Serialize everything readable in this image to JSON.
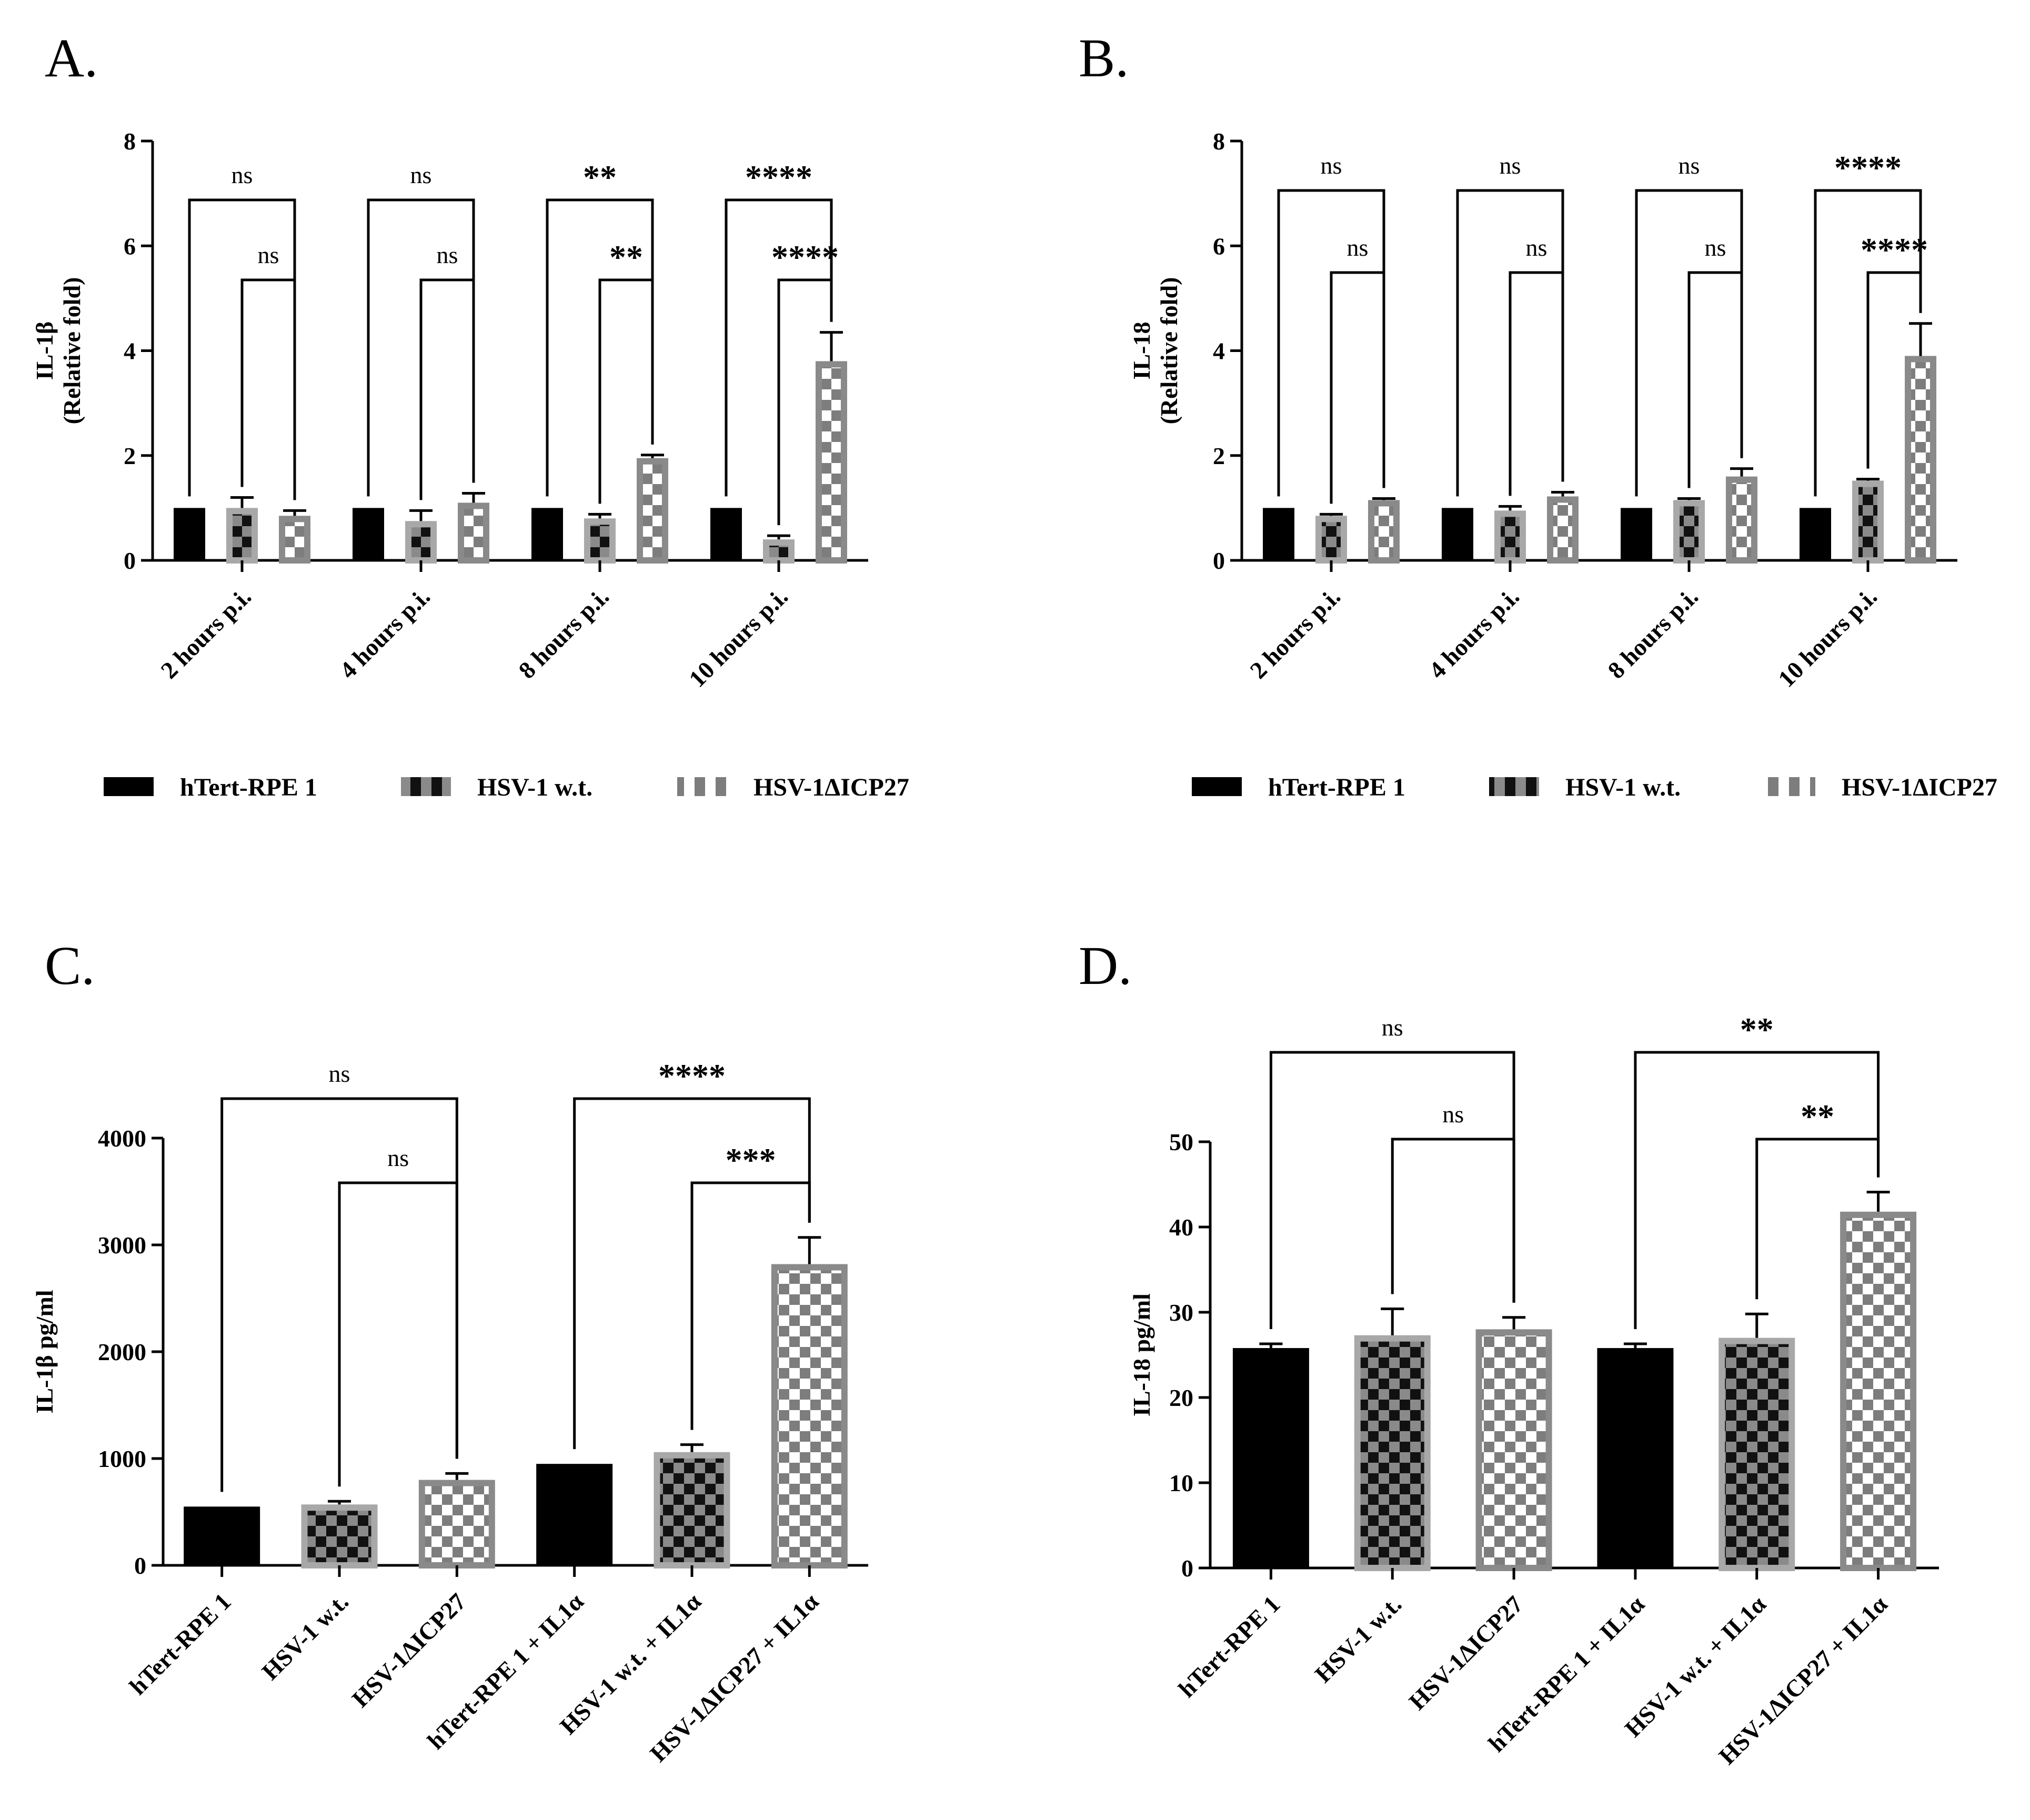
{
  "figure": {
    "panels": [
      {
        "letter": "A."
      },
      {
        "letter": "B."
      },
      {
        "letter": "C."
      },
      {
        "letter": "D."
      }
    ]
  },
  "legend": {
    "items": [
      {
        "label": "hTert-RPE 1",
        "pattern": "solid"
      },
      {
        "label": "HSV-1 w.t.",
        "pattern": "check-dark"
      },
      {
        "label": "HSV-1ΔICP27",
        "pattern": "check-light"
      }
    ]
  },
  "chart_data": [
    {
      "type": "bar",
      "ylabel_line1": "IL-1β",
      "ylabel_line2": "(Relative fold)",
      "ylim": [
        0,
        8
      ],
      "yticks": [
        "0",
        "2",
        "4",
        "6",
        "8"
      ],
      "categories": [
        "2 hours p.i.",
        "4 hours p.i.",
        "8 hours p.i.",
        "10 hours p.i."
      ],
      "series": [
        {
          "name": "hTert-RPE 1",
          "values": [
            1.0,
            1.0,
            1.0,
            1.0
          ],
          "errors": [
            0,
            0,
            0,
            0
          ]
        },
        {
          "name": "HSV-1 w.t.",
          "values": [
            1.0,
            0.75,
            0.8,
            0.4
          ],
          "errors": [
            0.2,
            0.2,
            0.08,
            0.07
          ]
        },
        {
          "name": "HSV-1ΔICP27",
          "values": [
            0.85,
            1.1,
            1.95,
            3.8
          ],
          "errors": [
            0.1,
            0.18,
            0.06,
            0.55
          ]
        }
      ],
      "significance": [
        {
          "outer": "ns",
          "inner": "ns"
        },
        {
          "outer": "ns",
          "inner": "ns"
        },
        {
          "outer": "**",
          "inner": "**"
        },
        {
          "outer": "****",
          "inner": "****"
        }
      ]
    },
    {
      "type": "bar",
      "ylabel_line1": "IL-18",
      "ylabel_line2": "(Relative fold)",
      "ylim": [
        0,
        8
      ],
      "yticks": [
        "0",
        "2",
        "4",
        "6",
        "8"
      ],
      "categories": [
        "2 hours p.i.",
        "4 hours p.i.",
        "8 hours p.i.",
        "10 hours p.i."
      ],
      "series": [
        {
          "name": "hTert-RPE 1",
          "values": [
            1.0,
            1.0,
            1.0,
            1.0
          ],
          "errors": [
            0,
            0,
            0,
            0
          ]
        },
        {
          "name": "HSV-1 w.t.",
          "values": [
            0.85,
            0.95,
            1.15,
            1.52
          ],
          "errors": [
            0.03,
            0.08,
            0.03,
            0.03
          ]
        },
        {
          "name": "HSV-1ΔICP27",
          "values": [
            1.15,
            1.22,
            1.6,
            3.9
          ],
          "errors": [
            0.03,
            0.08,
            0.15,
            0.62
          ]
        }
      ],
      "significance": [
        {
          "outer": "ns",
          "inner": "ns"
        },
        {
          "outer": "ns",
          "inner": "ns"
        },
        {
          "outer": "ns",
          "inner": "ns"
        },
        {
          "outer": "****",
          "inner": "****"
        }
      ]
    },
    {
      "type": "bar",
      "ylabel": "IL-1β pg/ml",
      "ylim": [
        0,
        4000
      ],
      "yticks": [
        "0",
        "1000",
        "2000",
        "3000",
        "4000"
      ],
      "categories": [
        "hTert-RPE 1",
        "HSV-1 w.t.",
        "HSV-1ΔICP27",
        "hTert-RPE 1 + IL1α",
        "HSV-1 w.t. + IL1α",
        "HSV-1ΔICP27 + IL1α"
      ],
      "values": [
        550,
        570,
        800,
        950,
        1060,
        2820
      ],
      "errors": [
        0,
        30,
        60,
        0,
        70,
        250
      ],
      "patterns": [
        "solid",
        "check-dark",
        "check-light",
        "solid",
        "check-dark",
        "check-light"
      ],
      "significance": [
        {
          "from": 0,
          "to": 2,
          "label": "ns"
        },
        {
          "from": 1,
          "to": 2,
          "label": "ns"
        },
        {
          "from": 3,
          "to": 5,
          "label": "****"
        },
        {
          "from": 4,
          "to": 5,
          "label": "***"
        }
      ]
    },
    {
      "type": "bar",
      "ylabel": "IL-18 pg/ml",
      "ylim": [
        0,
        50
      ],
      "yticks": [
        "0",
        "10",
        "20",
        "30",
        "40",
        "50"
      ],
      "categories": [
        "hTert-RPE 1",
        "HSV-1 w.t.",
        "HSV-1ΔICP27",
        "hTert-RPE 1 + IL1α",
        "HSV-1 w.t. + IL1α",
        "HSV-1ΔICP27 + IL1α"
      ],
      "values": [
        25.8,
        27.3,
        28.0,
        25.8,
        27.0,
        41.8
      ],
      "errors": [
        0.5,
        3.1,
        1.4,
        0.5,
        2.8,
        2.3
      ],
      "patterns": [
        "solid",
        "check-dark",
        "check-light",
        "solid",
        "check-dark",
        "check-light"
      ],
      "significance": [
        {
          "from": 0,
          "to": 2,
          "label": "ns"
        },
        {
          "from": 1,
          "to": 2,
          "label": "ns"
        },
        {
          "from": 3,
          "to": 5,
          "label": "**"
        },
        {
          "from": 4,
          "to": 5,
          "label": "**"
        }
      ]
    }
  ]
}
